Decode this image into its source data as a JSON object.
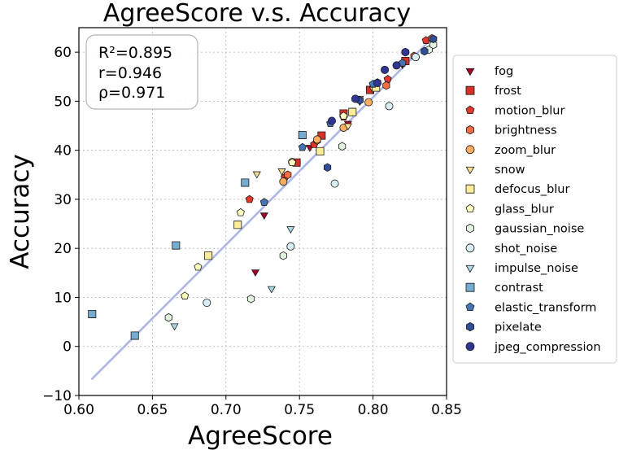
{
  "chart_data": {
    "type": "scatter",
    "title": "AgreeScore  v.s.  Accuracy",
    "xlabel": "AgreeScore",
    "ylabel": "Accuracy",
    "xlim": [
      0.6,
      0.85
    ],
    "ylim": [
      -10,
      65
    ],
    "xticks": [
      0.6,
      0.65,
      0.7,
      0.75,
      0.8,
      0.85
    ],
    "xtick_labels": [
      "0.60",
      "0.65",
      "0.70",
      "0.75",
      "0.80",
      "0.85"
    ],
    "yticks": [
      -10,
      0,
      10,
      20,
      30,
      40,
      50,
      60
    ],
    "ytick_labels": [
      "−10",
      "0",
      "10",
      "20",
      "30",
      "40",
      "50",
      "60"
    ],
    "grid": true,
    "stats": {
      "r2": "R²=0.895",
      "r": "r=0.946",
      "rho": "ρ=0.971"
    },
    "fit_line": {
      "x": [
        0.609,
        0.84
      ],
      "y": [
        -6.6,
        62.8
      ],
      "color": "#aab8e8"
    },
    "legend_position": "right",
    "series": [
      {
        "name": "fog",
        "marker": "triangle-down",
        "color": "#a50026",
        "points": [
          [
            0.72,
            15.2
          ],
          [
            0.726,
            26.8
          ],
          [
            0.757,
            40.6
          ],
          [
            0.783,
            45.5
          ],
          [
            0.82,
            57.5
          ]
        ]
      },
      {
        "name": "frost",
        "marker": "square",
        "color": "#d73027",
        "points": [
          [
            0.748,
            37.5
          ],
          [
            0.765,
            43.0
          ],
          [
            0.78,
            47.5
          ],
          [
            0.798,
            52.3
          ],
          [
            0.822,
            58.2
          ]
        ]
      },
      {
        "name": "motion_blur",
        "marker": "pentagon",
        "color": "#e0382c",
        "points": [
          [
            0.716,
            30.0
          ],
          [
            0.74,
            34.5
          ],
          [
            0.76,
            41.2
          ],
          [
            0.78,
            46.8
          ],
          [
            0.81,
            54.5
          ],
          [
            0.836,
            62.4
          ]
        ]
      },
      {
        "name": "brightness",
        "marker": "hexagon",
        "color": "#f46d43",
        "points": [
          [
            0.742,
            35.0
          ],
          [
            0.762,
            42.0
          ],
          [
            0.786,
            47.8
          ],
          [
            0.809,
            53.2
          ],
          [
            0.828,
            59.2
          ],
          [
            0.84,
            62.8
          ]
        ]
      },
      {
        "name": "zoom_blur",
        "marker": "circle",
        "color": "#fdae61",
        "points": [
          [
            0.739,
            33.6
          ],
          [
            0.745,
            37.6
          ],
          [
            0.762,
            42.2
          ],
          [
            0.78,
            44.6
          ],
          [
            0.797,
            49.8
          ]
        ]
      },
      {
        "name": "snow",
        "marker": "triangle-down",
        "color": "#fee090",
        "points": [
          [
            0.721,
            35.2
          ],
          [
            0.738,
            35.8
          ],
          [
            0.783,
            45.0
          ],
          [
            0.791,
            50.6
          ],
          [
            0.8,
            52.5
          ]
        ]
      },
      {
        "name": "defocus_blur",
        "marker": "square",
        "color": "#ffed99",
        "points": [
          [
            0.688,
            18.5
          ],
          [
            0.708,
            24.8
          ],
          [
            0.764,
            39.8
          ],
          [
            0.786,
            47.8
          ],
          [
            0.802,
            52.8
          ]
        ]
      },
      {
        "name": "glass_blur",
        "marker": "pentagon",
        "color": "#ffffbf",
        "points": [
          [
            0.672,
            10.3
          ],
          [
            0.681,
            16.2
          ],
          [
            0.71,
            27.3
          ],
          [
            0.745,
            37.5
          ],
          [
            0.78,
            47.0
          ]
        ]
      },
      {
        "name": "gaussian_noise",
        "marker": "hexagon",
        "color": "#e0f3dc",
        "points": [
          [
            0.661,
            5.9
          ],
          [
            0.717,
            9.7
          ],
          [
            0.739,
            18.5
          ],
          [
            0.779,
            40.8
          ],
          [
            0.838,
            60.5
          ],
          [
            0.841,
            61.5
          ]
        ]
      },
      {
        "name": "shot_noise",
        "marker": "circle",
        "color": "#d7eef5",
        "points": [
          [
            0.687,
            8.9
          ],
          [
            0.744,
            20.4
          ],
          [
            0.774,
            33.2
          ],
          [
            0.811,
            49.0
          ],
          [
            0.829,
            59.0
          ]
        ]
      },
      {
        "name": "impulse_noise",
        "marker": "triangle-down",
        "color": "#abd9e9",
        "points": [
          [
            0.665,
            4.2
          ],
          [
            0.731,
            11.8
          ],
          [
            0.744,
            24.0
          ],
          [
            0.791,
            50.0
          ]
        ]
      },
      {
        "name": "contrast",
        "marker": "square",
        "color": "#74add1",
        "points": [
          [
            0.609,
            6.6
          ],
          [
            0.638,
            2.2
          ],
          [
            0.666,
            20.6
          ],
          [
            0.713,
            33.4
          ],
          [
            0.752,
            43.1
          ]
        ]
      },
      {
        "name": "elastic_transform",
        "marker": "pentagon",
        "color": "#4575b4",
        "points": [
          [
            0.726,
            29.4
          ],
          [
            0.752,
            40.6
          ],
          [
            0.771,
            45.5
          ],
          [
            0.8,
            53.5
          ],
          [
            0.82,
            57.8
          ]
        ]
      },
      {
        "name": "pixelate",
        "marker": "hexagon",
        "color": "#2f4f99",
        "points": [
          [
            0.769,
            36.5
          ],
          [
            0.791,
            50.2
          ],
          [
            0.803,
            53.8
          ],
          [
            0.822,
            60.0
          ],
          [
            0.835,
            60.2
          ],
          [
            0.841,
            62.7
          ]
        ]
      },
      {
        "name": "jpeg_compression",
        "marker": "circle",
        "color": "#313695",
        "points": [
          [
            0.772,
            46.0
          ],
          [
            0.788,
            50.5
          ],
          [
            0.803,
            53.7
          ],
          [
            0.808,
            56.4
          ],
          [
            0.816,
            57.3
          ],
          [
            0.822,
            60.0
          ]
        ]
      }
    ]
  }
}
